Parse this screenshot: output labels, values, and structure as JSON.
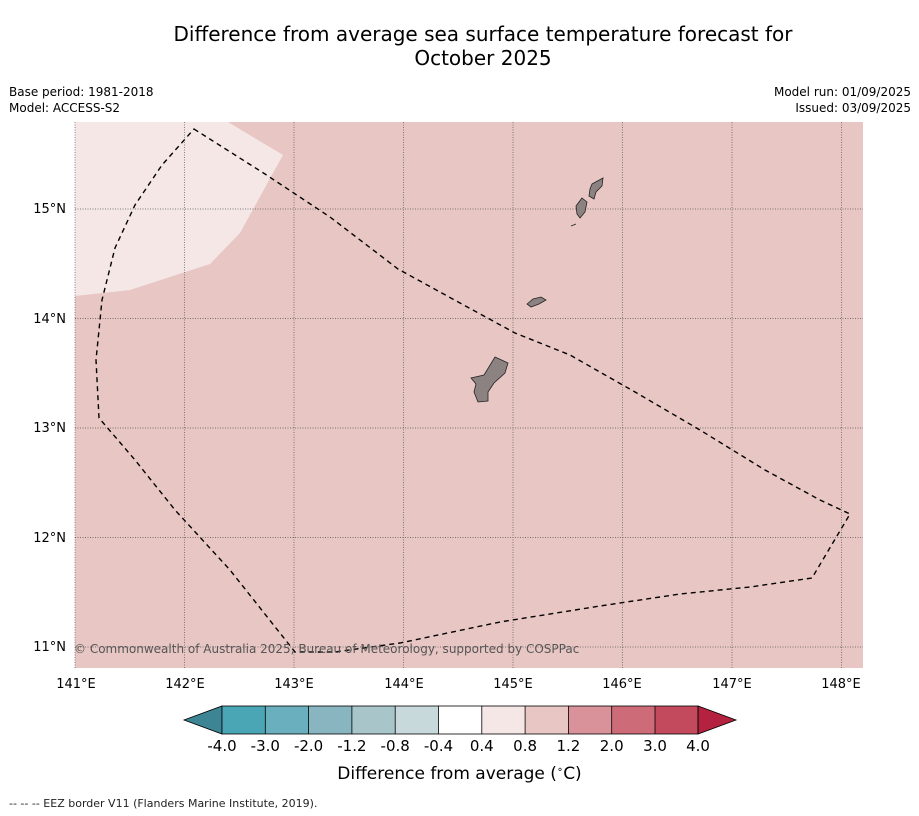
{
  "title_line1": "Difference from average sea surface temperature forecast for",
  "title_line2": "October 2025",
  "meta_left": {
    "base_period": "Base period: 1981-2018",
    "model": "Model: ACCESS-S2"
  },
  "meta_right": {
    "model_run": "Model run: 01/09/2025",
    "issued": "Issued: 03/09/2025"
  },
  "map": {
    "lon_range": [
      141.0,
      148.2
    ],
    "lat_range": [
      10.8,
      15.8
    ],
    "lon_ticks": [
      "141°E",
      "142°E",
      "143°E",
      "144°E",
      "145°E",
      "146°E",
      "147°E",
      "148°E"
    ],
    "lat_ticks": [
      "15°N",
      "14°N",
      "13°N",
      "12°N",
      "11°N"
    ],
    "background_category": "0.8 to 1.2",
    "background_color": "#e8c6c3",
    "lighter_region_category": "0.4 to 0.8",
    "lighter_region_color": "#f4e7e6",
    "land_color": "#8c8282",
    "copyright": "© Commonwealth of Australia 2025, Bureau of Meteorology, supported by COSPPac"
  },
  "colorbar": {
    "tick_labels": [
      "-4.0",
      "-3.0",
      "-2.0",
      "-1.2",
      "-0.8",
      "-0.4",
      "0.4",
      "0.8",
      "1.2",
      "2.0",
      "3.0",
      "4.0"
    ],
    "colors": [
      "#4aa5b5",
      "#6aafbe",
      "#89b5c1",
      "#a8c6ca",
      "#c8d9dc",
      "#ffffff",
      "#f4e7e6",
      "#e8c6c3",
      "#d9919a",
      "#cd6b78",
      "#c24a5c"
    ],
    "under_color": "#3d8594",
    "over_color": "#b5223f",
    "label": "Difference from average (",
    "label_unit": "°C)"
  },
  "footnote": "--  --  -- EEZ border V11 (Flanders Marine Institute, 2019)."
}
